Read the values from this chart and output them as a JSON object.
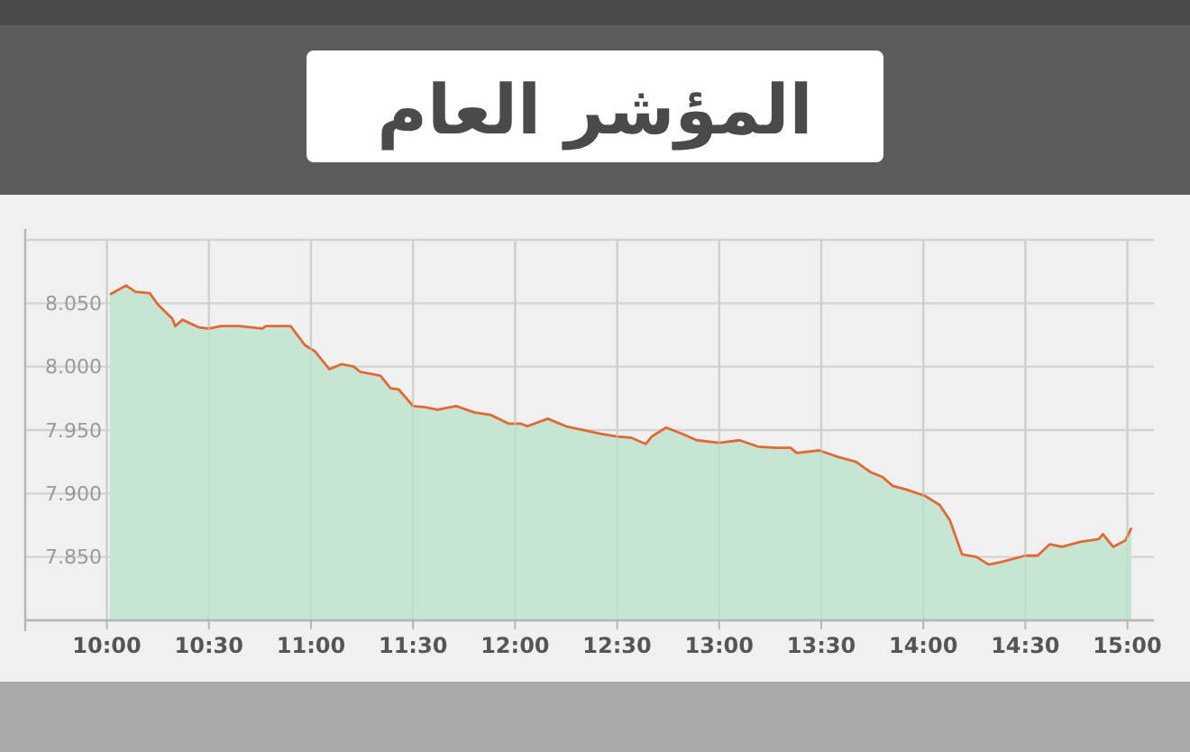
{
  "chart_data": {
    "type": "area",
    "title": "المؤشر العام",
    "x": [
      10.015,
      10.094,
      10.14,
      10.21,
      10.25,
      10.32,
      10.335,
      10.37,
      10.45,
      10.5,
      10.56,
      10.65,
      10.76,
      10.78,
      10.9,
      10.97,
      11.02,
      11.09,
      11.15,
      11.21,
      11.24,
      11.34,
      11.39,
      11.43,
      11.5,
      11.56,
      11.62,
      11.71,
      11.8,
      11.88,
      11.97,
      12.03,
      12.06,
      12.16,
      12.25,
      12.42,
      12.5,
      12.57,
      12.64,
      12.67,
      12.74,
      12.82,
      12.89,
      13.0,
      13.1,
      13.19,
      13.28,
      13.35,
      13.38,
      13.49,
      13.58,
      13.67,
      13.74,
      13.8,
      13.85,
      13.92,
      14.01,
      14.08,
      14.13,
      14.19,
      14.26,
      14.32,
      14.38,
      14.5,
      14.56,
      14.62,
      14.68,
      14.77,
      14.86,
      14.88,
      14.93,
      14.99,
      15.02
    ],
    "series": [
      {
        "color": "#e06a35",
        "values": [
          8057,
          8064,
          8059,
          8058,
          8049,
          8038,
          8032,
          8037,
          8031,
          8030,
          8032,
          8032,
          8030,
          8032,
          8032,
          8017,
          8012,
          7998,
          8002,
          8000,
          7996,
          7993,
          7983,
          7982,
          7969,
          7968,
          7966,
          7969,
          7964,
          7962,
          7955,
          7955,
          7953,
          7959,
          7953,
          7947,
          7945,
          7944,
          7939,
          7945,
          7952,
          7947,
          7942,
          7940,
          7942,
          7937,
          7936,
          7936,
          7932,
          7934,
          7929,
          7925,
          7917,
          7913,
          7906,
          7903,
          7898,
          7891,
          7879,
          7852,
          7850,
          7844,
          7846,
          7851,
          7851,
          7860,
          7858,
          7862,
          7864,
          7868,
          7858,
          7863,
          7873
        ]
      }
    ],
    "xlim": [
      9.6,
      15.13
    ],
    "xticks": [
      {
        "value": 10,
        "label": "10:00"
      },
      {
        "value": 10.5,
        "label": "10:30"
      },
      {
        "value": 11,
        "label": "11:00"
      },
      {
        "value": 11.5,
        "label": "11:30"
      },
      {
        "value": 12,
        "label": "12:00"
      },
      {
        "value": 12.5,
        "label": "12:30"
      },
      {
        "value": 13,
        "label": "13:00"
      },
      {
        "value": 13.5,
        "label": "13:30"
      },
      {
        "value": 14,
        "label": "14:00"
      },
      {
        "value": 14.5,
        "label": "14:30"
      },
      {
        "value": 15,
        "label": "15:00"
      }
    ],
    "ylim": [
      7800,
      8100
    ],
    "yticks": [
      {
        "value": 7800,
        "label": null
      },
      {
        "value": 7850,
        "label": "7.850"
      },
      {
        "value": 7900,
        "label": "7.900"
      },
      {
        "value": 7950,
        "label": "7.950"
      },
      {
        "value": 8000,
        "label": "8.000"
      },
      {
        "value": 8050,
        "label": "8.050"
      },
      {
        "value": 8100,
        "label": null
      }
    ],
    "grid": true,
    "marker": "none"
  }
}
